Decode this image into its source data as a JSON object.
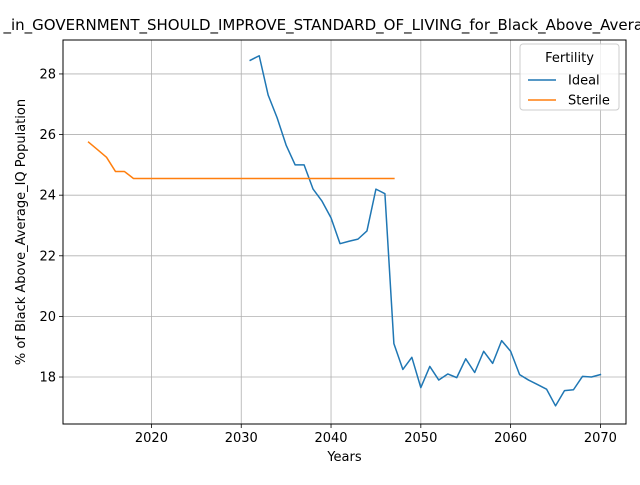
{
  "chart_data": {
    "type": "line",
    "title": "_in_GOVERNMENT_SHOULD_IMPROVE_STANDARD_OF_LIVING_for_Black_Above_Average_IQ",
    "xlabel": "Years",
    "ylabel": "% of Black Above_Average_IQ Population",
    "xlim": [
      2010.15,
      2072.85
    ],
    "ylim": [
      16.45,
      29.12
    ],
    "x_ticks": [
      2020,
      2030,
      2040,
      2050,
      2060,
      2070
    ],
    "y_ticks": [
      18,
      20,
      22,
      24,
      26,
      28
    ],
    "grid": true,
    "legend": {
      "title": "Fertility",
      "placement": "top-right"
    },
    "series": [
      {
        "name": "Ideal",
        "color": "#1f77b4",
        "x": [
          2031,
          2032,
          2033,
          2034,
          2035,
          2036,
          2037,
          2038,
          2039,
          2040,
          2041,
          2042,
          2043,
          2044,
          2045,
          2046,
          2047,
          2048,
          2049,
          2050,
          2051,
          2052,
          2053,
          2054,
          2055,
          2056,
          2057,
          2058,
          2059,
          2060,
          2061,
          2062,
          2063,
          2064,
          2065,
          2066,
          2067,
          2068,
          2069,
          2070
        ],
        "values": [
          28.45,
          28.6,
          27.3,
          26.55,
          25.65,
          25.0,
          25.0,
          24.2,
          23.8,
          23.25,
          22.4,
          22.48,
          22.55,
          22.82,
          24.2,
          24.05,
          19.1,
          18.25,
          18.65,
          17.65,
          18.35,
          17.9,
          18.1,
          17.98,
          18.6,
          18.15,
          18.85,
          18.45,
          19.2,
          18.85,
          18.08,
          17.9,
          17.75,
          17.6,
          17.05,
          17.55,
          17.58,
          18.02,
          18.0,
          18.08
        ]
      },
      {
        "name": "Sterile",
        "color": "#ff7f0e",
        "x": [
          2013,
          2014,
          2015,
          2016,
          2017,
          2018,
          2019,
          2020,
          2021,
          2022,
          2023,
          2024,
          2025,
          2026,
          2027,
          2028,
          2029,
          2030,
          2031,
          2032,
          2033,
          2034,
          2035,
          2036,
          2037,
          2038,
          2039,
          2040,
          2041,
          2042,
          2043,
          2044,
          2045,
          2046,
          2047
        ],
        "values": [
          25.75,
          25.5,
          25.25,
          24.78,
          24.78,
          24.55,
          24.55,
          24.55,
          24.55,
          24.55,
          24.55,
          24.55,
          24.55,
          24.55,
          24.55,
          24.55,
          24.55,
          24.55,
          24.55,
          24.55,
          24.55,
          24.55,
          24.55,
          24.55,
          24.55,
          24.55,
          24.55,
          24.55,
          24.55,
          24.55,
          24.55,
          24.55,
          24.55,
          24.55,
          24.55
        ]
      }
    ]
  }
}
